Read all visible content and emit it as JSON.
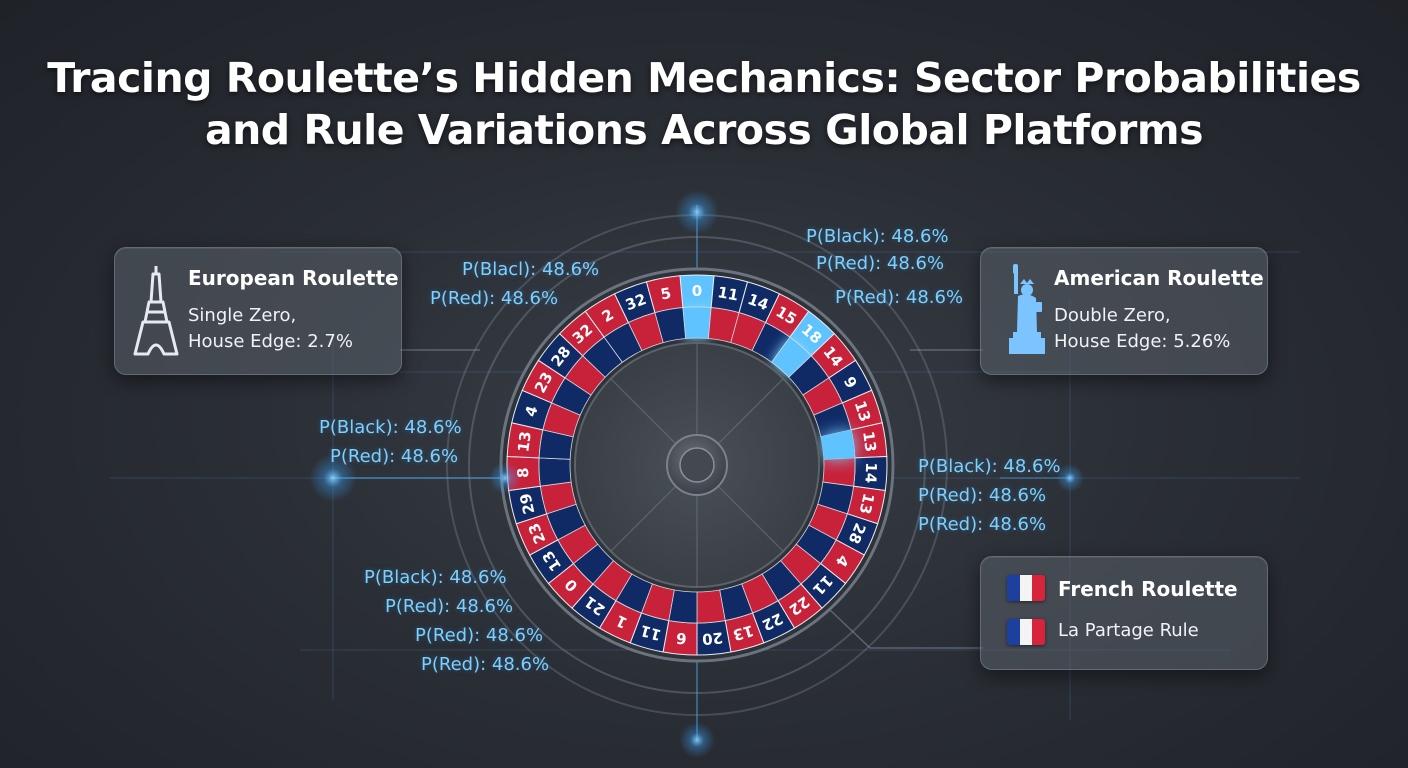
{
  "title": {
    "line1": "Tracing Roulette’s Hidden Mechanics: Sector Probabilities",
    "line2": "and Rule Variations Across Global Platforms"
  },
  "colors": {
    "red": "#c8213a",
    "navy": "#102a66",
    "highlight": "#5ec3ff",
    "accent": "#4fb3ff"
  },
  "cards": {
    "european": {
      "title": "European Roulette",
      "line1": "Single Zero,",
      "line2": "House Edge: 2.7%",
      "icon": "eiffel-tower-icon"
    },
    "american": {
      "title": "American Roulette",
      "line1": "Double Zero,",
      "line2": "House Edge: 5.26%",
      "icon": "statue-of-liberty-icon"
    },
    "french": {
      "title": "French Roulette",
      "line1": "La Partage Rule",
      "icon": "french-flag-icon"
    }
  },
  "probability_labels": {
    "top_left": [
      "P(Blacl): 48.6%",
      "P(Red): 48.6%"
    ],
    "top_right": [
      "P(Black): 48.6%",
      "P(Red): 48.6%",
      "P(Red): 48.6%"
    ],
    "mid_left": [
      "P(Black): 48.6%",
      "P(Red): 48.6%"
    ],
    "mid_right": [
      "P(Black): 48.6%",
      "P(Red): 48.6%",
      "P(Red): 48.6%"
    ],
    "bottom_left": [
      "P(Black): 48.6%",
      "P(Red): 48.6%",
      "P(Red): 48.6%",
      "P(Red): 48.6%"
    ]
  },
  "wheel": {
    "pockets": [
      {
        "n": "0",
        "c": "highlight"
      },
      {
        "n": "11",
        "c": "navy"
      },
      {
        "n": "14",
        "c": "navy"
      },
      {
        "n": "15",
        "c": "red"
      },
      {
        "n": "18",
        "c": "highlight"
      },
      {
        "n": "14",
        "c": "red"
      },
      {
        "n": "9",
        "c": "navy"
      },
      {
        "n": "13",
        "c": "red"
      },
      {
        "n": "13",
        "c": "red"
      },
      {
        "n": "14",
        "c": "navy"
      },
      {
        "n": "13",
        "c": "red"
      },
      {
        "n": "28",
        "c": "navy"
      },
      {
        "n": "4",
        "c": "red"
      },
      {
        "n": "11",
        "c": "navy"
      },
      {
        "n": "22",
        "c": "red"
      },
      {
        "n": "22",
        "c": "navy"
      },
      {
        "n": "13",
        "c": "red"
      },
      {
        "n": "20",
        "c": "navy"
      },
      {
        "n": "6",
        "c": "red"
      },
      {
        "n": "11",
        "c": "navy"
      },
      {
        "n": "1",
        "c": "red"
      },
      {
        "n": "21",
        "c": "navy"
      },
      {
        "n": "0",
        "c": "red"
      },
      {
        "n": "13",
        "c": "navy"
      },
      {
        "n": "23",
        "c": "red"
      },
      {
        "n": "29",
        "c": "navy"
      },
      {
        "n": "8",
        "c": "red"
      },
      {
        "n": "13",
        "c": "red"
      },
      {
        "n": "4",
        "c": "navy"
      },
      {
        "n": "23",
        "c": "red"
      },
      {
        "n": "28",
        "c": "navy"
      },
      {
        "n": "32",
        "c": "red"
      },
      {
        "n": "2",
        "c": "red"
      },
      {
        "n": "32",
        "c": "navy"
      },
      {
        "n": "5",
        "c": "red"
      }
    ],
    "inner_highlights": [
      0,
      4,
      8
    ]
  }
}
